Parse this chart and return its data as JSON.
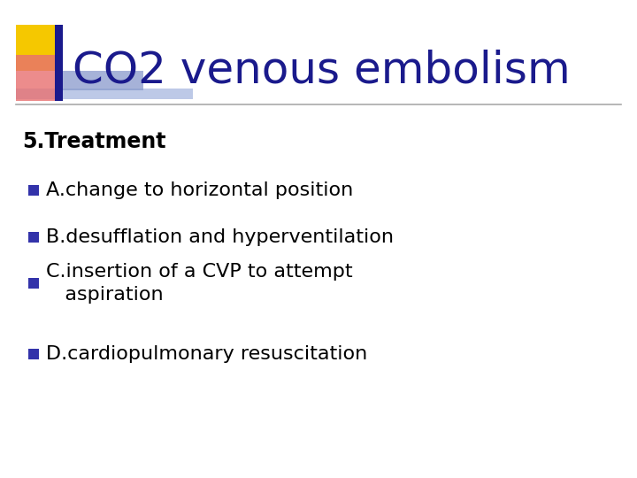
{
  "background_color": "#ffffff",
  "title_line1": "CO",
  "title_sub2": "2",
  "title_line2": " venous embolism",
  "title_color": "#1a1a8c",
  "title_fontsize": 36,
  "subtitle": "5.Treatment",
  "subtitle_fontsize": 17,
  "bullet_color": "#3333aa",
  "bullet_items": [
    "A.change to horizontal position",
    "B.desufflation and hyperventilation",
    "C.insertion of a CVP to attempt\n   aspiration",
    "D.cardiopulmonary resuscitation"
  ],
  "bullet_fontsize": 16,
  "text_color": "#000000",
  "decoration": {
    "yellow": "#f5c800",
    "red_pink": "#e87070",
    "blue_dark": "#1a1a8c",
    "blue_mid": "#4466bb",
    "blue_light": "#8899cc"
  },
  "line_color": "#aaaaaa",
  "line_width": 1.2
}
